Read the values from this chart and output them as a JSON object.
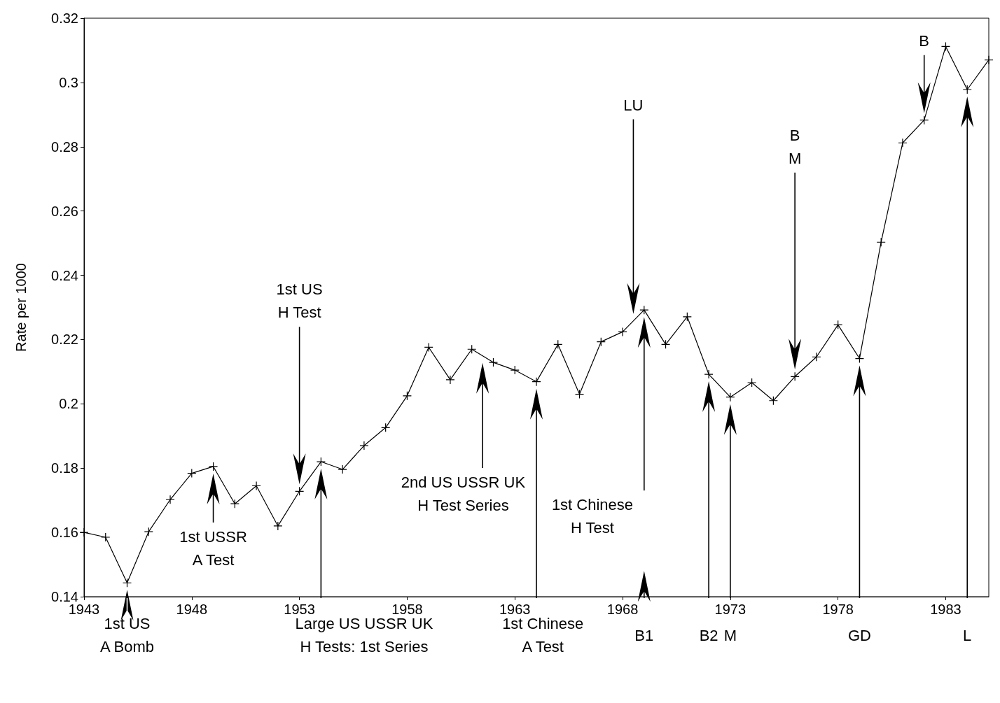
{
  "chart_data": {
    "type": "line",
    "ylabel": "Rate per 1000",
    "x": [
      1943,
      1944,
      1945,
      1946,
      1947,
      1948,
      1949,
      1950,
      1951,
      1952,
      1953,
      1954,
      1955,
      1956,
      1957,
      1958,
      1959,
      1960,
      1961,
      1962,
      1963,
      1964,
      1965,
      1966,
      1967,
      1968,
      1969,
      1970,
      1971,
      1972,
      1973,
      1974,
      1975,
      1976,
      1977,
      1978,
      1979,
      1980,
      1981,
      1982,
      1983,
      1984,
      1985
    ],
    "series": [
      {
        "color": "#000000",
        "values": [
          0.16,
          0.1585,
          0.1443,
          0.1602,
          0.1702,
          0.1784,
          0.1805,
          0.1689,
          0.1745,
          0.162,
          0.1728,
          0.182,
          0.1796,
          0.187,
          0.1926,
          0.2025,
          0.2176,
          0.2075,
          0.217,
          0.2129,
          0.2105,
          0.2069,
          0.2185,
          0.203,
          0.2193,
          0.2224,
          0.2292,
          0.2185,
          0.2271,
          0.2092,
          0.2021,
          0.2066,
          0.201,
          0.2085,
          0.2146,
          0.2246,
          0.2141,
          0.2503,
          0.2812,
          0.2883,
          0.3112,
          0.2978,
          0.307
        ]
      }
    ],
    "xlim": [
      1943,
      1985
    ],
    "xticks": [
      1943,
      1948,
      1953,
      1958,
      1963,
      1968,
      1973,
      1978,
      1983
    ],
    "ylim": [
      0.14,
      0.32
    ],
    "yticks": [
      0.14,
      0.16,
      0.18,
      0.2,
      0.22,
      0.24,
      0.26,
      0.28,
      0.3,
      0.32
    ],
    "grid": false,
    "marker": "cross",
    "line_style": "solid",
    "annotations": [
      "1st US\nA Bomb",
      "1st USSR\nA Test",
      "1st US\nH Test",
      "Large US USSR UK\nH Tests: 1st Series",
      "2nd US USSR UK\nH Test Series",
      "1st Chinese\nA Test",
      "1st Chinese\nH Test",
      "B1",
      "B2",
      "M",
      "GD",
      "L",
      "LU",
      "B\nM",
      "B"
    ]
  }
}
